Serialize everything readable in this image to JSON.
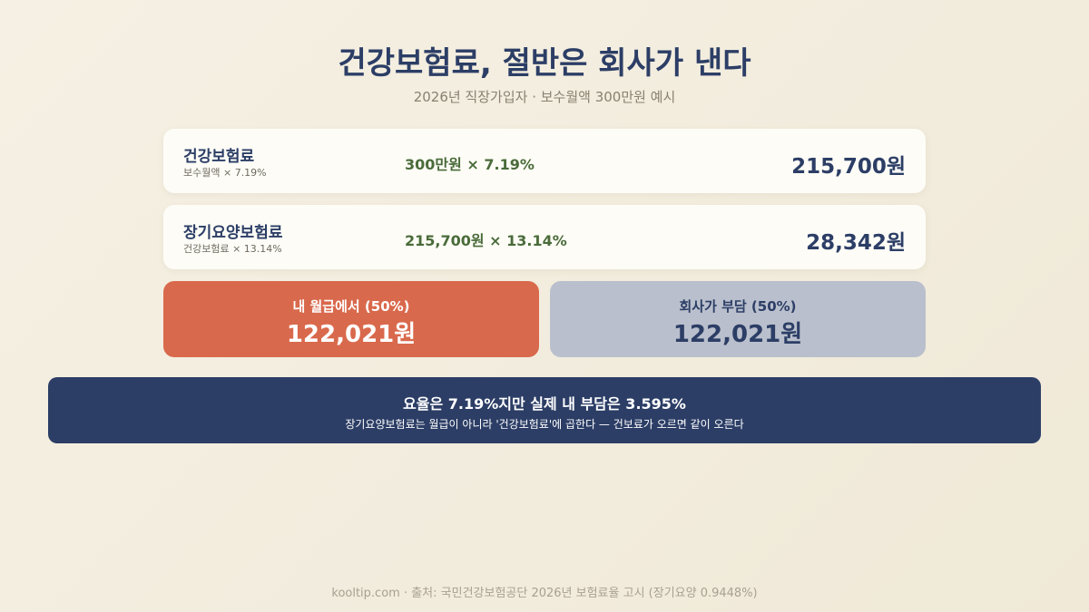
{
  "header": {
    "title": "건강보험료, 절반은 회사가 낸다",
    "subtitle": "2026년 직장가입자 · 보수월액 300만원 예시"
  },
  "rows": [
    {
      "label": "건강보험료",
      "sublabel": "보수월액 × 7.19%",
      "formula": "300만원 × 7.19%",
      "amount": "215,700원"
    },
    {
      "label": "장기요양보험료",
      "sublabel": "건강보험료 × 13.14%",
      "formula": "215,700원 × 13.14%",
      "amount": "28,342원"
    }
  ],
  "split": [
    {
      "label": "내 월급에서 (50%)",
      "amount": "122,021원"
    },
    {
      "label": "회사가 부담 (50%)",
      "amount": "122,021원"
    }
  ],
  "banner": {
    "headline": "요율은 7.19%지만 실제 내 부담은 3.595%",
    "note": "장기요양보험료는 월급이 아니라 '건강보험료'에 곱한다 — 건보료가 오르면 같이 오른다"
  },
  "footer": "kooltip.com · 출처: 국민건강보험공단 2026년 보험료율 고시 (장기요양 0.9448%)"
}
